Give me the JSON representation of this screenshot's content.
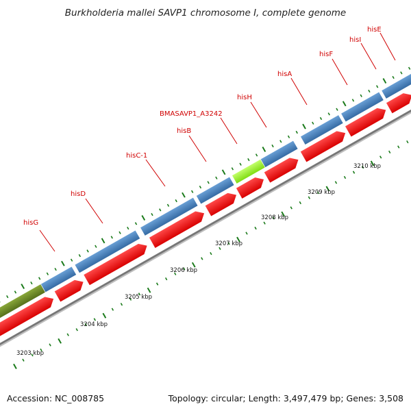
{
  "title": "Burkholderia mallei SAVP1 chromosome I, complete genome",
  "footer": {
    "accession": "Accession: NC_008785",
    "summary": "Topology: circular; Length: 3,497,479 bp; Genes: 3,508"
  },
  "genes": [
    {
      "name": "hisG"
    },
    {
      "name": "hisD"
    },
    {
      "name": "hisC-1"
    },
    {
      "name": "hisB"
    },
    {
      "name": "BMASAVP1_A3242"
    },
    {
      "name": "hisH"
    },
    {
      "name": "hisA"
    },
    {
      "name": "hisF"
    },
    {
      "name": "hisI"
    },
    {
      "name": "hisE"
    }
  ],
  "scale": {
    "unit": "kbp",
    "labels": [
      "3203 kbp",
      "3204 kbp",
      "3205 kbp",
      "3206 kbp",
      "3207 kbp",
      "3208 kbp",
      "3209 kbp",
      "3210 kbp"
    ]
  },
  "colors": {
    "gene_label": "#d00000",
    "forward_cds": "#4d84c0",
    "reverse_cds": "#ff1a1a",
    "highlight_cds": "#9aff2e",
    "operon_block": "#6b8e23",
    "backbone": "#777777",
    "ticks": "#1a7a1a"
  }
}
